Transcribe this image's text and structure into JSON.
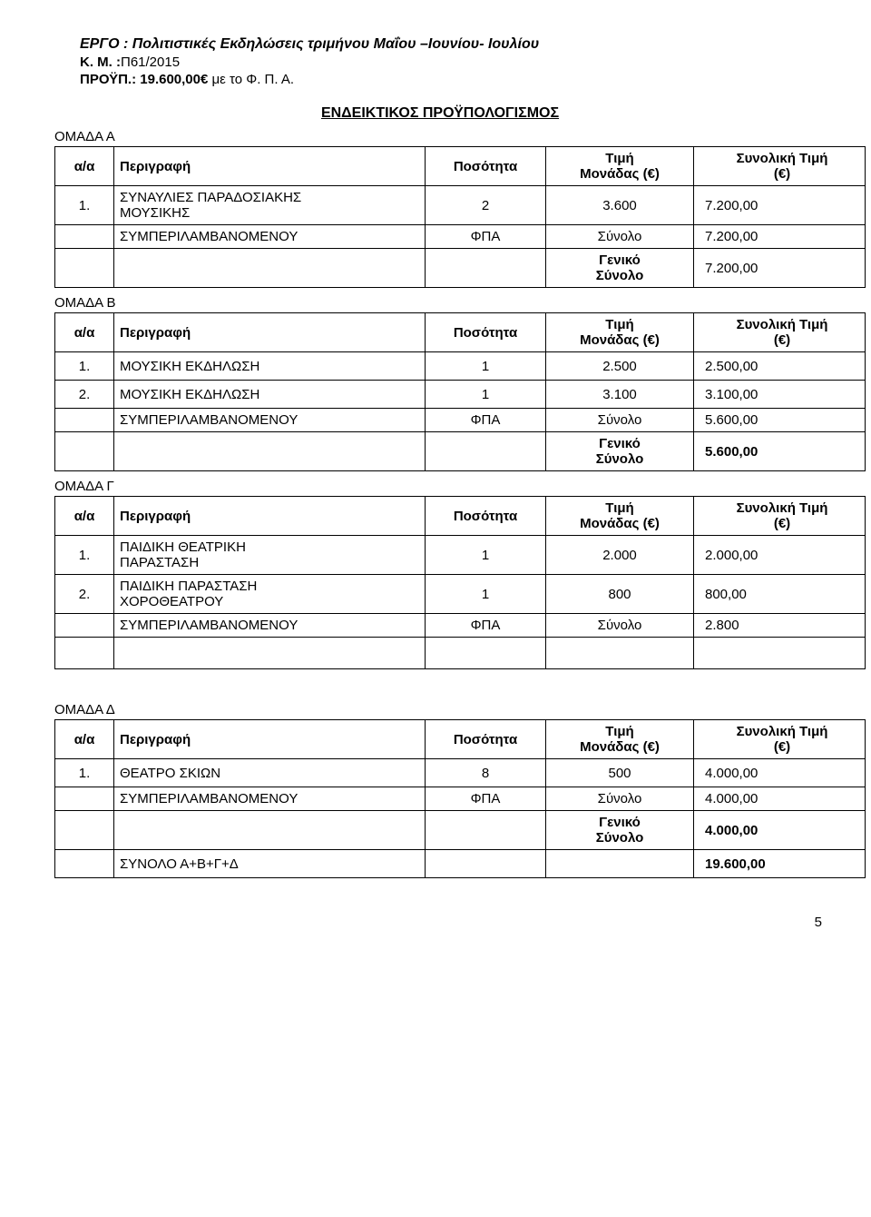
{
  "header": {
    "project_label": "ΕΡΓΟ : ",
    "project_title": "Πολιτιστικές Εκδηλώσεις τριμήνου Μαΐου –Ιουνίου- Ιουλίου",
    "km_label": "Κ. Μ. :",
    "km_value": "Π61/2015",
    "budget_label": "ΠΡΟΫΠ.: ",
    "budget_value": "19.600,00€",
    "budget_suffix": " με το Φ. Π. Α."
  },
  "main_title": "ΕΝΔΕΙΚΤΙΚΟΣ ΠΡΟΫΠΟΛΟΓΙΣΜΟΣ",
  "columns": {
    "idx": "α/α",
    "desc": "Περιγραφή",
    "qty": "Ποσότητα",
    "unit_l1": "Τιμή",
    "unit_l2": "Μονάδας (€)",
    "total_l1": "Συνολική Τιμή",
    "total_l2": "(€)"
  },
  "labels": {
    "vat_included": "ΣΥΜΠΕΡΙΛΑΜΒΑΝΟΜΕΝΟΥ",
    "vat": "ΦΠΑ",
    "subtotal": "Σύνολο",
    "grand_l1": "Γενικό",
    "grand_l2": "Σύνολο",
    "sum_all": "ΣΥΝΟΛΟ Α+Β+Γ+Δ"
  },
  "group_a": {
    "label": "ΟΜΑΔΑ Α",
    "rows": [
      {
        "idx": "1.",
        "desc_l1": "ΣΥΝΑΥΛΙΕΣ ΠΑΡΑΔΟΣΙΑΚΗΣ",
        "desc_l2": "ΜΟΥΣΙΚΗΣ",
        "qty": "2",
        "unit": "3.600",
        "total": "7.200,00"
      }
    ],
    "subtotal": "7.200,00",
    "grand": "7.200,00"
  },
  "group_b": {
    "label": "ΟΜΑΔΑ Β",
    "rows": [
      {
        "idx": "1.",
        "desc": "ΜΟΥΣΙΚΗ ΕΚΔΗΛΩΣΗ",
        "qty": "1",
        "unit": "2.500",
        "total": "2.500,00"
      },
      {
        "idx": "2.",
        "desc": "ΜΟΥΣΙΚΗ ΕΚΔΗΛΩΣΗ",
        "qty": "1",
        "unit": "3.100",
        "total": "3.100,00"
      }
    ],
    "subtotal": "5.600,00",
    "grand": "5.600,00"
  },
  "group_c": {
    "label": "ΟΜΑΔΑ Γ",
    "rows": [
      {
        "idx": "1.",
        "desc_l1": "ΠΑΙΔΙΚΗ ΘΕΑΤΡΙΚΗ",
        "desc_l2": "ΠΑΡΑΣΤΑΣΗ",
        "qty": "1",
        "unit": "2.000",
        "total": "2.000,00"
      },
      {
        "idx": "2.",
        "desc_l1": "ΠΑΙΔΙΚΗ ΠΑΡΑΣΤΑΣΗ",
        "desc_l2": "ΧΟΡΟΘΕΑΤΡΟΥ",
        "qty": "1",
        "unit": "800",
        "total": "800,00"
      }
    ],
    "subtotal": "2.800"
  },
  "group_d": {
    "label": "ΟΜΑΔΑ Δ",
    "rows": [
      {
        "idx": "1.",
        "desc": "ΘΕΑΤΡΟ ΣΚΙΩΝ",
        "qty": "8",
        "unit": "500",
        "total": "4.000,00"
      }
    ],
    "subtotal": "4.000,00",
    "grand": "4.000,00",
    "sum_all_value": "19.600,00"
  },
  "page_number": "5"
}
